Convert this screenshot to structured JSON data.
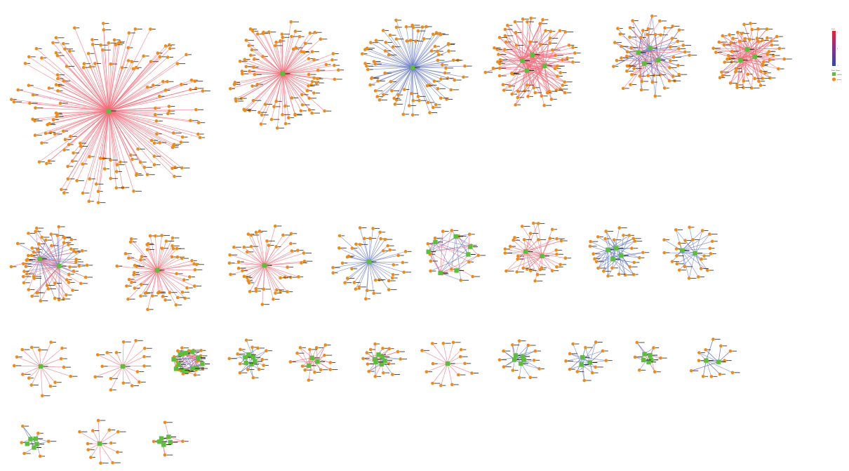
{
  "legend": {
    "edge_title": "Fold",
    "edge_ticks": [
      "2",
      "0",
      "-2"
    ],
    "node_title": "Node Shape",
    "node_items": [
      {
        "label": "miRNA",
        "shape": "square",
        "color": "#5cbf3a"
      },
      {
        "label": "protein",
        "shape": "circle",
        "color": "#f08a14"
      }
    ],
    "gradient": [
      "#e8242f",
      "#8a2f8c",
      "#2e4aa8"
    ]
  },
  "colors": {
    "node_hub": "#5cbf3a",
    "node_leaf": "#f08a14",
    "edge_up": "#f26b7a",
    "edge_down": "#6a79c6",
    "label": "#222222"
  },
  "networks": [
    {
      "id": "net-01",
      "hubs": 1,
      "leaves": 160,
      "tone": "up"
    },
    {
      "id": "net-02",
      "hubs": 1,
      "leaves": 90,
      "tone": "up"
    },
    {
      "id": "net-03",
      "hubs": 1,
      "leaves": 85,
      "tone": "down"
    },
    {
      "id": "net-04",
      "hubs": 4,
      "leaves": 70,
      "tone": "up"
    },
    {
      "id": "net-05",
      "hubs": 4,
      "leaves": 55,
      "tone": "mixed"
    },
    {
      "id": "net-06",
      "hubs": 3,
      "leaves": 60,
      "tone": "up"
    },
    {
      "id": "net-07",
      "hubs": 2,
      "leaves": 60,
      "tone": "mixed"
    },
    {
      "id": "net-08",
      "hubs": 1,
      "leaves": 55,
      "tone": "up"
    },
    {
      "id": "net-09",
      "hubs": 1,
      "leaves": 45,
      "tone": "up"
    },
    {
      "id": "net-10",
      "hubs": 1,
      "leaves": 40,
      "tone": "down"
    },
    {
      "id": "net-11",
      "hubs": 7,
      "leaves": 16,
      "tone": "mixed"
    },
    {
      "id": "net-12",
      "hubs": 2,
      "leaves": 32,
      "tone": "up"
    },
    {
      "id": "net-13",
      "hubs": 4,
      "leaves": 26,
      "tone": "down"
    },
    {
      "id": "net-14",
      "hubs": 2,
      "leaves": 24,
      "tone": "down"
    },
    {
      "id": "net-15",
      "hubs": 1,
      "leaves": 16,
      "tone": "up"
    },
    {
      "id": "net-16",
      "hubs": 1,
      "leaves": 16,
      "tone": "up"
    },
    {
      "id": "net-17",
      "hubs": 14,
      "leaves": 16,
      "tone": "mixed"
    },
    {
      "id": "net-18",
      "hubs": 6,
      "leaves": 14,
      "tone": "down"
    },
    {
      "id": "net-19",
      "hubs": 3,
      "leaves": 14,
      "tone": "up"
    },
    {
      "id": "net-20",
      "hubs": 6,
      "leaves": 14,
      "tone": "mixed"
    },
    {
      "id": "net-21",
      "hubs": 1,
      "leaves": 14,
      "tone": "up"
    },
    {
      "id": "net-22",
      "hubs": 5,
      "leaves": 12,
      "tone": "down"
    },
    {
      "id": "net-23",
      "hubs": 3,
      "leaves": 12,
      "tone": "down"
    },
    {
      "id": "net-24",
      "hubs": 5,
      "leaves": 6,
      "tone": "mixed"
    },
    {
      "id": "net-25",
      "hubs": 2,
      "leaves": 12,
      "tone": "down"
    },
    {
      "id": "net-26",
      "hubs": 5,
      "leaves": 6,
      "tone": "down"
    },
    {
      "id": "net-27",
      "hubs": 1,
      "leaves": 12,
      "tone": "up"
    },
    {
      "id": "net-28",
      "hubs": 5,
      "leaves": 4,
      "tone": "mixed"
    }
  ]
}
